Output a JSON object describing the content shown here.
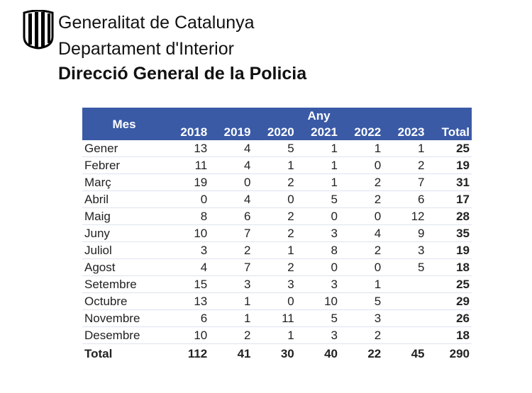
{
  "header": {
    "line1": "Generalitat de Catalunya",
    "line2": "Departament d'Interior",
    "line3": "Direcció General de la Policia"
  },
  "colors": {
    "header_bg": "#3a5aa6"
  },
  "table": {
    "month_header": "Mes",
    "year_header": "Any",
    "columns": [
      "2018",
      "2019",
      "2020",
      "2021",
      "2022",
      "2023",
      "Total"
    ],
    "rows": [
      {
        "month": "Gener",
        "values": [
          "13",
          "4",
          "5",
          "1",
          "1",
          "1"
        ],
        "total": "25"
      },
      {
        "month": "Febrer",
        "values": [
          "11",
          "4",
          "1",
          "1",
          "0",
          "2"
        ],
        "total": "19"
      },
      {
        "month": "Març",
        "values": [
          "19",
          "0",
          "2",
          "1",
          "2",
          "7"
        ],
        "total": "31"
      },
      {
        "month": "Abril",
        "values": [
          "0",
          "4",
          "0",
          "5",
          "2",
          "6"
        ],
        "total": "17"
      },
      {
        "month": "Maig",
        "values": [
          "8",
          "6",
          "2",
          "0",
          "0",
          "12"
        ],
        "total": "28"
      },
      {
        "month": "Juny",
        "values": [
          "10",
          "7",
          "2",
          "3",
          "4",
          "9"
        ],
        "total": "35"
      },
      {
        "month": "Juliol",
        "values": [
          "3",
          "2",
          "1",
          "8",
          "2",
          "3"
        ],
        "total": "19"
      },
      {
        "month": "Agost",
        "values": [
          "4",
          "7",
          "2",
          "0",
          "0",
          "5"
        ],
        "total": "18"
      },
      {
        "month": "Setembre",
        "values": [
          "15",
          "3",
          "3",
          "3",
          "1",
          ""
        ],
        "total": "25"
      },
      {
        "month": "Octubre",
        "values": [
          "13",
          "1",
          "0",
          "10",
          "5",
          ""
        ],
        "total": "29"
      },
      {
        "month": "Novembre",
        "values": [
          "6",
          "1",
          "11",
          "5",
          "3",
          ""
        ],
        "total": "26"
      },
      {
        "month": "Desembre",
        "values": [
          "10",
          "2",
          "1",
          "3",
          "2",
          ""
        ],
        "total": "18"
      }
    ],
    "total_row": {
      "label": "Total",
      "values": [
        "112",
        "41",
        "30",
        "40",
        "22",
        "45"
      ],
      "total": "290"
    }
  }
}
